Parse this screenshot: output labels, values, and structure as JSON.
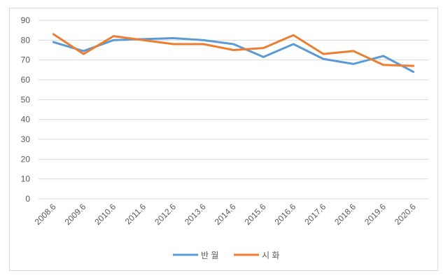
{
  "chart_data": {
    "type": "line",
    "title": "",
    "xlabel": "",
    "ylabel": "",
    "categories": [
      "2008.6",
      "2009.6",
      "2010.6",
      "2011.6",
      "2012.6",
      "2013.6",
      "2014.6",
      "2015.6",
      "2016.6",
      "2017.6",
      "2018.6",
      "2019.6",
      "2020.6"
    ],
    "ylim": [
      0,
      90
    ],
    "yticks": [
      0,
      10,
      20,
      30,
      40,
      50,
      60,
      70,
      80,
      90
    ],
    "grid": true,
    "legend_position": "bottom",
    "series": [
      {
        "name": "반 월",
        "color": "#5b9bd5",
        "values": [
          79,
          74.5,
          80,
          80.5,
          81,
          80,
          78,
          71.5,
          78,
          70.5,
          68,
          72,
          64
        ]
      },
      {
        "name": "시 화",
        "color": "#ed7d31",
        "values": [
          83,
          73,
          82,
          80,
          78,
          78,
          75,
          76,
          82.5,
          73,
          74.5,
          67.5,
          67
        ]
      }
    ]
  }
}
